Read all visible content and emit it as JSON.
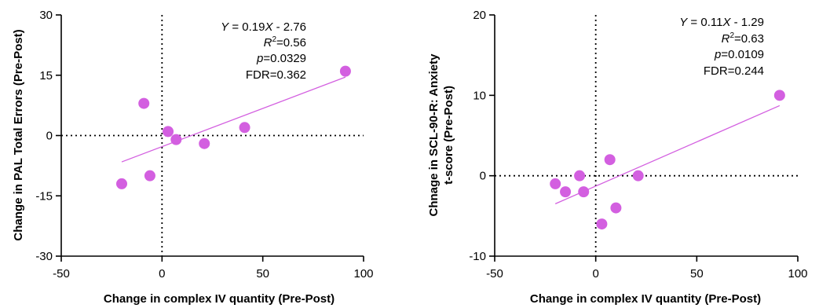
{
  "colors": {
    "points": "#d35fe0",
    "fit": "#d35fe0",
    "axis": "#000000"
  },
  "chart_data": [
    {
      "type": "scatter",
      "xlabel": "Change in complex IV quantity (Pre-Post)",
      "ylabel": [
        "Change in PAL Total Errors (Pre-Post)"
      ],
      "xlim": [
        -50,
        100
      ],
      "ylim": [
        -30,
        30
      ],
      "xticks": [
        -50,
        0,
        50,
        100
      ],
      "yticks": [
        -30,
        -15,
        0,
        15,
        30
      ],
      "reference_lines": {
        "x": 0,
        "y": 0,
        "style": "dotted"
      },
      "points": [
        {
          "x": -20,
          "y": -12
        },
        {
          "x": -9,
          "y": 8
        },
        {
          "x": -6,
          "y": -10
        },
        {
          "x": 3,
          "y": 1
        },
        {
          "x": 7,
          "y": -1
        },
        {
          "x": 21,
          "y": -2
        },
        {
          "x": 41,
          "y": 2
        },
        {
          "x": 91,
          "y": 16
        }
      ],
      "fit": {
        "slope": 0.19,
        "intercept": -2.76,
        "x_range": [
          -20,
          91
        ]
      },
      "annotation": {
        "equation": {
          "y_var": "Y",
          "eq_part": " = 0.19",
          "x_var": "X",
          "rest": " - 2.76"
        },
        "r2": {
          "label": "R",
          "sup": "2",
          "value": "=0.56"
        },
        "p": {
          "label": "p",
          "value": "=0.0329"
        },
        "fdr": "FDR=0.362"
      }
    },
    {
      "type": "scatter",
      "xlabel": "Change in complex IV quantity (Pre-Post)",
      "ylabel": [
        "Chnage in SCL-90-R: Anxiety",
        "t-score (Pre-Post)"
      ],
      "xlim": [
        -50,
        100
      ],
      "ylim": [
        -10,
        20
      ],
      "xticks": [
        -50,
        0,
        50,
        100
      ],
      "yticks": [
        -10,
        0,
        10,
        20
      ],
      "reference_lines": {
        "x": 0,
        "y": 0,
        "style": "dotted"
      },
      "points": [
        {
          "x": -20,
          "y": -1
        },
        {
          "x": -15,
          "y": -2
        },
        {
          "x": -8,
          "y": 0
        },
        {
          "x": -6,
          "y": -2
        },
        {
          "x": 3,
          "y": -6
        },
        {
          "x": 7,
          "y": 2
        },
        {
          "x": 10,
          "y": -4
        },
        {
          "x": 21,
          "y": 0
        },
        {
          "x": 91,
          "y": 10
        }
      ],
      "fit": {
        "slope": 0.11,
        "intercept": -1.29,
        "x_range": [
          -20,
          91
        ]
      },
      "annotation": {
        "equation": {
          "y_var": "Y",
          "eq_part": " = 0.11",
          "x_var": "X",
          "rest": " - 1.29"
        },
        "r2": {
          "label": "R",
          "sup": "2",
          "value": "=0.63"
        },
        "p": {
          "label": "p",
          "value": "=0.0109"
        },
        "fdr": "FDR=0.244"
      }
    }
  ]
}
